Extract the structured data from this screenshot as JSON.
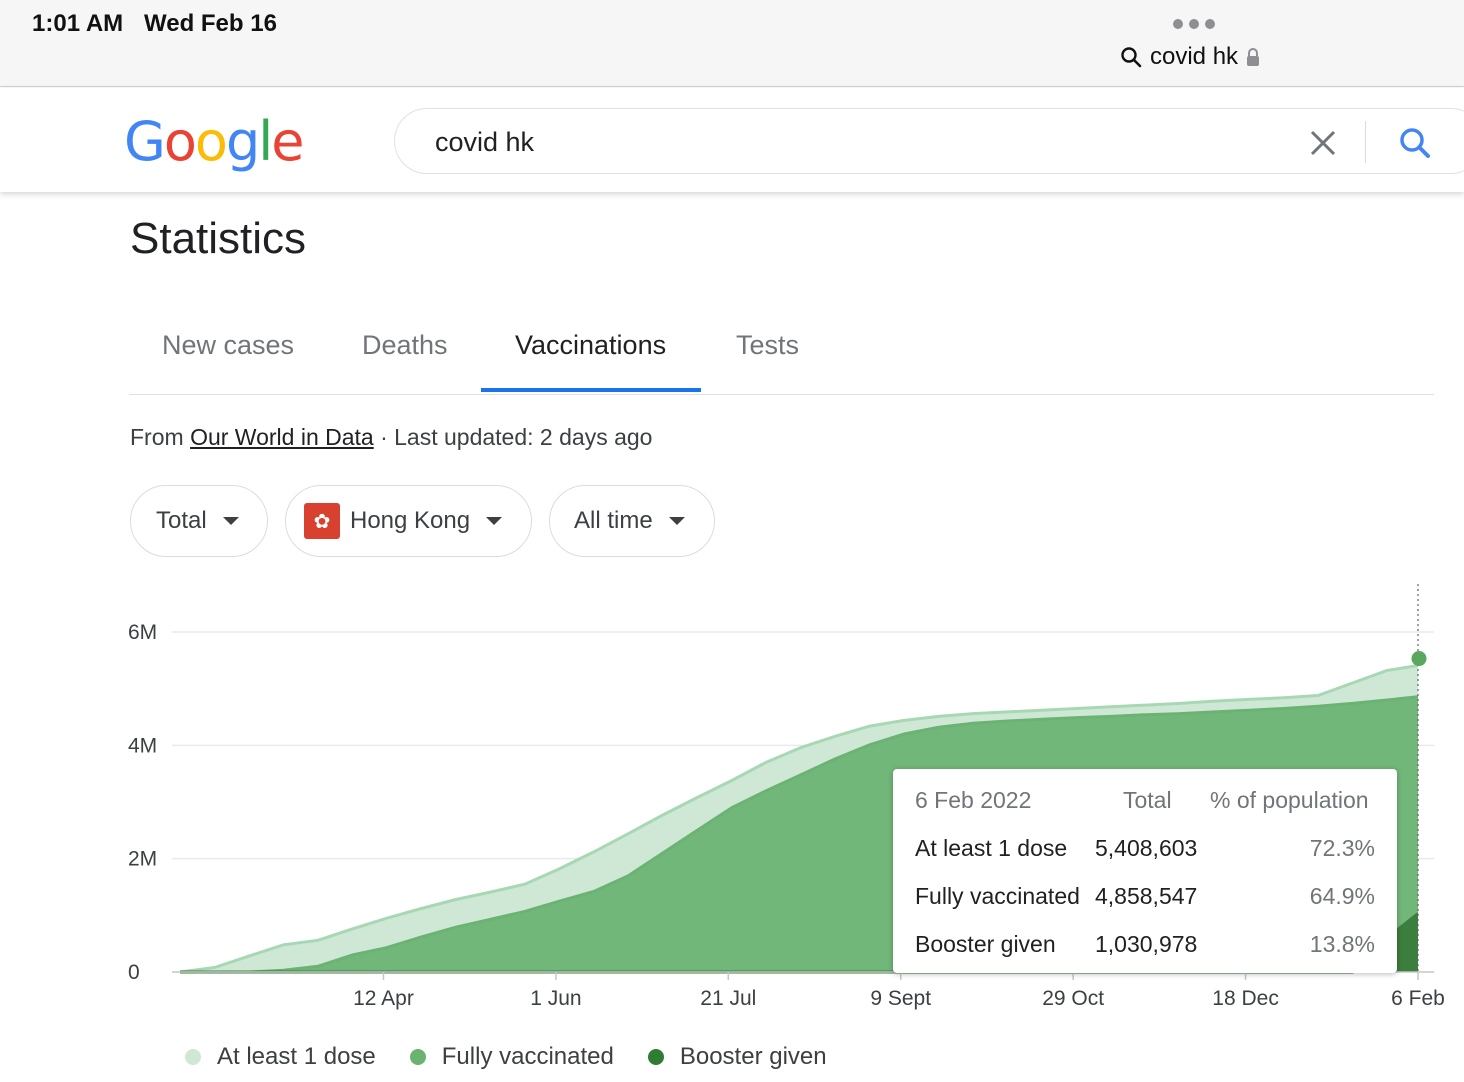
{
  "status_bar": {
    "time": "1:01 AM",
    "date": "Wed Feb 16",
    "url": "covid hk"
  },
  "google": {
    "logo_letters": [
      {
        "char": "G",
        "color": "#4285F4"
      },
      {
        "char": "o",
        "color": "#EA4335"
      },
      {
        "char": "o",
        "color": "#FBBC05"
      },
      {
        "char": "g",
        "color": "#4285F4"
      },
      {
        "char": "l",
        "color": "#34A853"
      },
      {
        "char": "e",
        "color": "#EA4335"
      }
    ],
    "search_value": "covid hk"
  },
  "statistics": {
    "title": "Statistics",
    "tabs": [
      {
        "label": "New cases",
        "active": false
      },
      {
        "label": "Deaths",
        "active": false
      },
      {
        "label": "Vaccinations",
        "active": true
      },
      {
        "label": "Tests",
        "active": false
      }
    ],
    "source_prefix": "From",
    "source_link": "Our World in Data",
    "source_suffix": " · Last updated: 2 days ago",
    "filters": {
      "metric": "Total",
      "region": "Hong Kong",
      "range": "All time"
    }
  },
  "chart_data": {
    "type": "area",
    "title": "",
    "ylabel": "",
    "xlabel": "",
    "ylim": [
      0,
      6000000
    ],
    "y_ticks": [
      {
        "label": "0",
        "value": 0
      },
      {
        "label": "2M",
        "value": 2000000
      },
      {
        "label": "4M",
        "value": 4000000
      },
      {
        "label": "6M",
        "value": 6000000
      }
    ],
    "x_ticks": [
      {
        "label": "12 Apr",
        "day": 59
      },
      {
        "label": "1 Jun",
        "day": 109
      },
      {
        "label": "21 Jul",
        "day": 159
      },
      {
        "label": "9 Sept",
        "day": 209
      },
      {
        "label": "29 Oct",
        "day": 259
      },
      {
        "label": "18 Dec",
        "day": 309
      },
      {
        "label": "6 Feb",
        "day": 359
      }
    ],
    "x_start_day": 0,
    "x_end_day": 359,
    "x": [
      0,
      10,
      20,
      30,
      40,
      50,
      60,
      70,
      80,
      90,
      100,
      110,
      120,
      130,
      140,
      150,
      160,
      170,
      180,
      190,
      200,
      210,
      220,
      230,
      240,
      250,
      260,
      270,
      280,
      290,
      300,
      310,
      320,
      330,
      340,
      350,
      359
    ],
    "series": [
      {
        "name": "At least 1 dose",
        "color": "#cfe8d6",
        "edge": "#a8d8b3",
        "values": [
          0,
          80000,
          280000,
          480000,
          560000,
          760000,
          950000,
          1120000,
          1280000,
          1410000,
          1550000,
          1820000,
          2120000,
          2440000,
          2770000,
          3080000,
          3380000,
          3700000,
          3960000,
          4160000,
          4340000,
          4440000,
          4510000,
          4560000,
          4590000,
          4620000,
          4650000,
          4680000,
          4710000,
          4740000,
          4780000,
          4810000,
          4840000,
          4880000,
          5100000,
          5320000,
          5408603
        ]
      },
      {
        "name": "Fully vaccinated",
        "color": "#72b77a",
        "edge": "#6bb373",
        "values": [
          0,
          0,
          0,
          30000,
          100000,
          300000,
          430000,
          620000,
          790000,
          930000,
          1070000,
          1250000,
          1420000,
          1700000,
          2100000,
          2500000,
          2900000,
          3200000,
          3480000,
          3760000,
          4010000,
          4200000,
          4320000,
          4390000,
          4430000,
          4460000,
          4490000,
          4510000,
          4540000,
          4560000,
          4590000,
          4620000,
          4650000,
          4690000,
          4740000,
          4800000,
          4858547
        ]
      },
      {
        "name": "Booster given",
        "color": "#3c7e3e",
        "edge": "#3c7e3e",
        "values": [
          0,
          0,
          0,
          0,
          0,
          0,
          0,
          0,
          0,
          0,
          0,
          0,
          0,
          0,
          0,
          0,
          0,
          0,
          0,
          0,
          0,
          0,
          0,
          0,
          0,
          0,
          0,
          0,
          0,
          0,
          0,
          0,
          0,
          0,
          0,
          600000,
          1030978
        ]
      }
    ],
    "legend": [
      {
        "label": "At least 1 dose",
        "color": "#cfe8d6"
      },
      {
        "label": "Fully vaccinated",
        "color": "#6ab46f"
      },
      {
        "label": "Booster given",
        "color": "#2e7d32"
      }
    ],
    "hover_point_color": "#5aa85d",
    "tooltip": {
      "date": "6 Feb 2022",
      "col_total": "Total",
      "col_pct": "% of population",
      "rows": [
        {
          "label": "At least 1 dose",
          "total": "5,408,603",
          "pct": "72.3%"
        },
        {
          "label": "Fully vaccinated",
          "total": "4,858,547",
          "pct": "64.9%"
        },
        {
          "label": "Booster given",
          "total": "1,030,978",
          "pct": "13.8%"
        }
      ]
    }
  }
}
